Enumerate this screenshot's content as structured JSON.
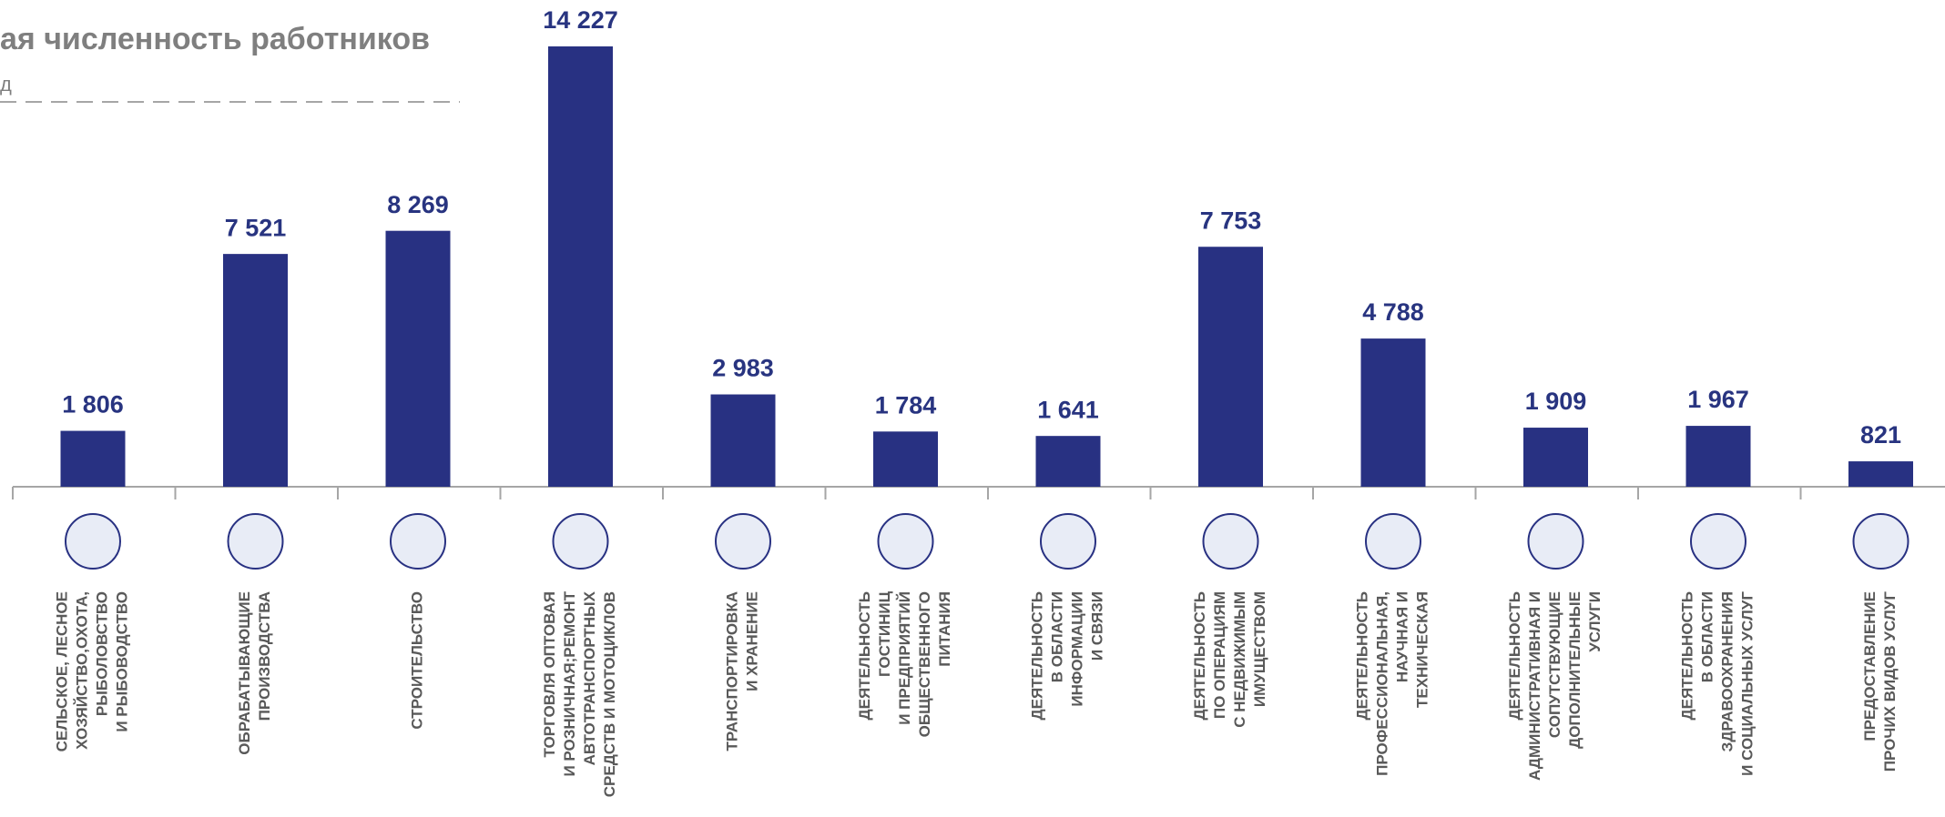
{
  "chart_data": {
    "type": "bar",
    "title": "ая численность работников",
    "subtitle": "д",
    "color": "#283182",
    "categories": [
      [
        "СЕЛЬСКОЕ, ЛЕСНОЕ",
        "ХОЗЯЙСТВО,ОХОТА,",
        "РЫБОЛОВСТВО",
        "И РЫБОВОДСТВО"
      ],
      [
        "ОБРАБАТЫВАЮЩИЕ",
        "ПРОИЗВОДСТВА"
      ],
      [
        "СТРОИТЕЛЬСТВО"
      ],
      [
        "ТОРГОВЛЯ ОПТОВАЯ",
        "И РОЗНИЧНАЯ;РЕМОНТ",
        "АВТОТРАНСПОРТНЫХ",
        "СРЕДСТВ И МОТОЦИКЛОВ"
      ],
      [
        "ТРАНСПОРТИРОВКА",
        "И ХРАНЕНИЕ"
      ],
      [
        "ДЕЯТЕЛЬНОСТЬ",
        "ГОСТИНИЦ",
        "И ПРЕДПРИЯТИЙ",
        "ОБЩЕСТВЕННОГО",
        "ПИТАНИЯ"
      ],
      [
        "ДЕЯТЕЛЬНОСТЬ",
        "В ОБЛАСТИ",
        "ИНФОРМАЦИИ",
        "И СВЯЗИ"
      ],
      [
        "ДЕЯТЕЛЬНОСТЬ",
        "ПО ОПЕРАЦИЯМ",
        "С НЕДВИЖИМЫМ",
        "ИМУЩЕСТВОМ"
      ],
      [
        "ДЕЯТЕЛЬНОСТЬ",
        "ПРОФЕССИОНАЛЬНАЯ,",
        "НАУЧНАЯ И",
        "ТЕХНИЧЕСКАЯ"
      ],
      [
        "ДЕЯТЕЛЬНОСТЬ",
        "АДМИНИСТРАТИВНАЯ И",
        "СОПУТСТВУЮЩИЕ",
        "ДОПОЛНИТЕЛЬНЫЕ",
        "УСЛУГИ"
      ],
      [
        "ДЕЯТЕЛЬНОСТЬ",
        "В ОБЛАСТИ",
        "ЗДРАВООХРАНЕНИЯ",
        "И СОЦИАЛЬНЫХ УСЛУГ"
      ],
      [
        "ПРЕДОСТАВЛЕНИЕ",
        "ПРОЧИХ ВИДОВ УСЛУГ"
      ]
    ],
    "values": [
      1806,
      7521,
      8269,
      14227,
      2983,
      1784,
      1641,
      7753,
      4788,
      1909,
      1967,
      821
    ],
    "value_labels": [
      "1 806",
      "7 521",
      "8 269",
      "14 227",
      "2 983",
      "1 784",
      "1 641",
      "7 753",
      "4 788",
      "1 909",
      "1 967",
      "821"
    ]
  }
}
